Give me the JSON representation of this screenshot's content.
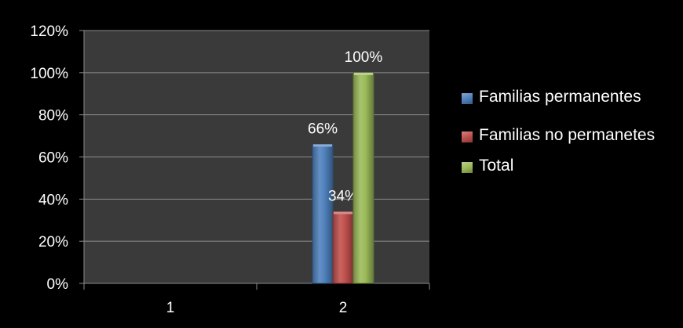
{
  "chart_data": {
    "type": "bar",
    "categories": [
      "1",
      "2"
    ],
    "series": [
      {
        "name": "Familias permanentes",
        "color": "#4f81bd",
        "values": [
          null,
          66
        ]
      },
      {
        "name": "Familias no permanetes",
        "color": "#c0504d",
        "values": [
          null,
          34
        ]
      },
      {
        "name": "Total",
        "color": "#9bbb59",
        "values": [
          null,
          100
        ]
      }
    ],
    "data_labels": [
      "66%",
      "34%",
      "100%"
    ],
    "y_ticks": [
      "0%",
      "20%",
      "40%",
      "60%",
      "80%",
      "100%",
      "120%"
    ],
    "ylim": [
      0,
      120
    ],
    "grid": true,
    "legend_position": "right",
    "plot_background": "#3a3a3a",
    "page_background": "#000000",
    "title": "",
    "xlabel": "",
    "ylabel": ""
  }
}
